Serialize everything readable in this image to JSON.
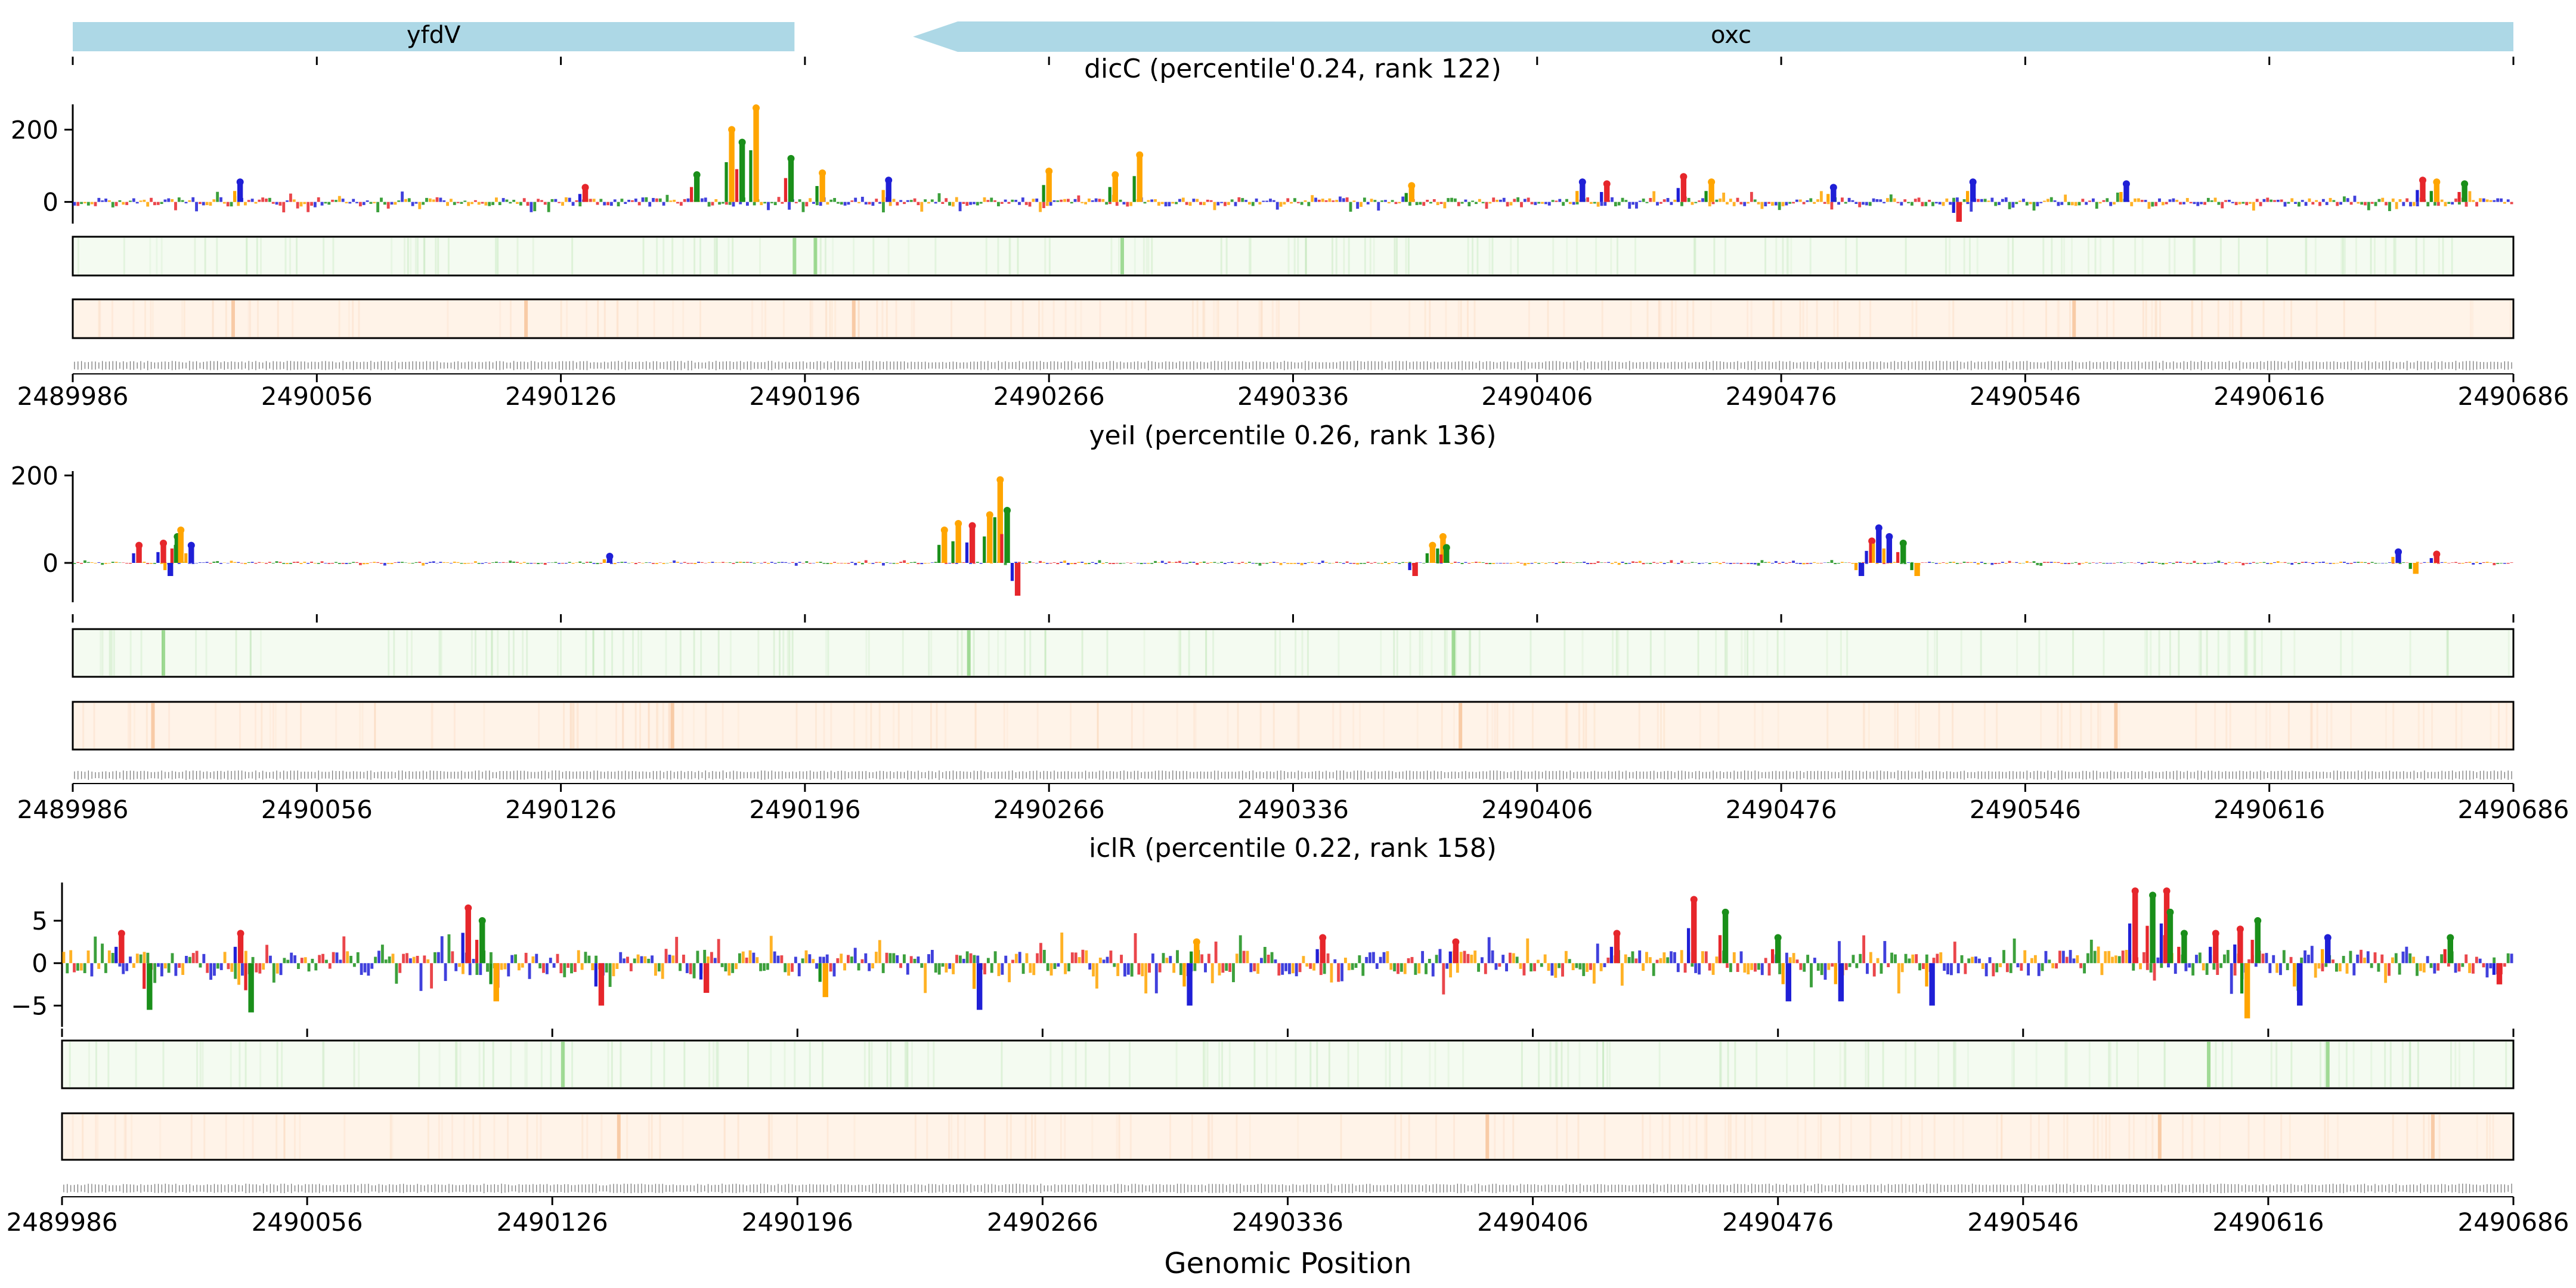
{
  "figure": {
    "xlabel": "Genomic Position"
  },
  "genes": [
    {
      "name": "yfdV",
      "start": 2489986,
      "end": 2490193,
      "strand": "+"
    },
    {
      "name": "oxc",
      "start": 2490227,
      "end": 2490686,
      "strand": "-"
    }
  ],
  "colors": {
    "gene": "#add8e6",
    "A": "#e6262b",
    "C": "#1f1fd6",
    "G": "#ffa500",
    "T": "#1a8f1a",
    "heat_green_bg": "#f4fbf1",
    "heat_green_mark": "#7ccc6e",
    "heat_orange_bg": "#fff3e8",
    "heat_orange_mark": "#f5b98a",
    "axis": "#000000"
  },
  "chart_data": [
    {
      "type": "line",
      "title": "dicC (percentile 0.24, rank 122)",
      "xlabel": "",
      "ylabel": "",
      "x_range": [
        2489986,
        2490686
      ],
      "x_ticks": [
        "2489986",
        "2490056",
        "2490126",
        "2490196",
        "2490266",
        "2490336",
        "2490406",
        "2490476",
        "2490546",
        "2490616",
        "2490686"
      ],
      "ylim": [
        -60,
        270
      ],
      "y_ticks": [
        0,
        200
      ],
      "series_note": "per-base attribution logo, bars colored by nucleotide",
      "peaks": [
        {
          "x": 2490034,
          "y": 55,
          "base": "C"
        },
        {
          "x": 2490133,
          "y": 40,
          "base": "A"
        },
        {
          "x": 2490165,
          "y": 75,
          "base": "T"
        },
        {
          "x": 2490175,
          "y": 200,
          "base": "G"
        },
        {
          "x": 2490178,
          "y": 165,
          "base": "T"
        },
        {
          "x": 2490182,
          "y": 260,
          "base": "G"
        },
        {
          "x": 2490192,
          "y": 120,
          "base": "T"
        },
        {
          "x": 2490201,
          "y": 80,
          "base": "G"
        },
        {
          "x": 2490220,
          "y": 60,
          "base": "C"
        },
        {
          "x": 2490266,
          "y": 85,
          "base": "G"
        },
        {
          "x": 2490285,
          "y": 75,
          "base": "G"
        },
        {
          "x": 2490292,
          "y": 130,
          "base": "G"
        },
        {
          "x": 2490370,
          "y": 45,
          "base": "G"
        },
        {
          "x": 2490419,
          "y": 55,
          "base": "C"
        },
        {
          "x": 2490426,
          "y": 50,
          "base": "A"
        },
        {
          "x": 2490448,
          "y": 70,
          "base": "A"
        },
        {
          "x": 2490456,
          "y": 55,
          "base": "G"
        },
        {
          "x": 2490491,
          "y": 40,
          "base": "C"
        },
        {
          "x": 2490527,
          "y": -55,
          "base": "A"
        },
        {
          "x": 2490531,
          "y": 55,
          "base": "C"
        },
        {
          "x": 2490575,
          "y": 50,
          "base": "C"
        },
        {
          "x": 2490660,
          "y": 60,
          "base": "A"
        },
        {
          "x": 2490664,
          "y": 55,
          "base": "G"
        },
        {
          "x": 2490672,
          "y": 50,
          "base": "T"
        }
      ],
      "noise_amplitude": 18,
      "heat_green_marks": [
        2490193,
        2490199,
        2490287
      ],
      "heat_orange_marks": [
        2490032,
        2490116,
        2490210,
        2490560
      ]
    },
    {
      "type": "line",
      "title": "yeiI (percentile 0.26, rank 136)",
      "xlabel": "",
      "ylabel": "",
      "x_range": [
        2489986,
        2490686
      ],
      "x_ticks": [
        "2489986",
        "2490056",
        "2490126",
        "2490196",
        "2490266",
        "2490336",
        "2490406",
        "2490476",
        "2490546",
        "2490616",
        "2490686"
      ],
      "ylim": [
        -90,
        210
      ],
      "y_ticks": [
        0,
        200
      ],
      "series_note": "per-base attribution logo, bars colored by nucleotide",
      "peaks": [
        {
          "x": 2490005,
          "y": 40,
          "base": "A"
        },
        {
          "x": 2490012,
          "y": 45,
          "base": "A"
        },
        {
          "x": 2490014,
          "y": -30,
          "base": "C"
        },
        {
          "x": 2490016,
          "y": 60,
          "base": "T"
        },
        {
          "x": 2490017,
          "y": 75,
          "base": "G"
        },
        {
          "x": 2490020,
          "y": 40,
          "base": "C"
        },
        {
          "x": 2490140,
          "y": 15,
          "base": "C"
        },
        {
          "x": 2490236,
          "y": 75,
          "base": "G"
        },
        {
          "x": 2490240,
          "y": 90,
          "base": "G"
        },
        {
          "x": 2490244,
          "y": 85,
          "base": "A"
        },
        {
          "x": 2490249,
          "y": 110,
          "base": "G"
        },
        {
          "x": 2490252,
          "y": 190,
          "base": "G"
        },
        {
          "x": 2490254,
          "y": 120,
          "base": "T"
        },
        {
          "x": 2490257,
          "y": -75,
          "base": "A"
        },
        {
          "x": 2490371,
          "y": -30,
          "base": "A"
        },
        {
          "x": 2490376,
          "y": 40,
          "base": "G"
        },
        {
          "x": 2490379,
          "y": 60,
          "base": "G"
        },
        {
          "x": 2490380,
          "y": 35,
          "base": "T"
        },
        {
          "x": 2490499,
          "y": -30,
          "base": "C"
        },
        {
          "x": 2490502,
          "y": 50,
          "base": "A"
        },
        {
          "x": 2490504,
          "y": 80,
          "base": "C"
        },
        {
          "x": 2490507,
          "y": 60,
          "base": "C"
        },
        {
          "x": 2490511,
          "y": 45,
          "base": "T"
        },
        {
          "x": 2490515,
          "y": -30,
          "base": "G"
        },
        {
          "x": 2490653,
          "y": 25,
          "base": "C"
        },
        {
          "x": 2490658,
          "y": -25,
          "base": "G"
        },
        {
          "x": 2490664,
          "y": 20,
          "base": "A"
        }
      ],
      "noise_amplitude": 4,
      "heat_green_marks": [
        2490012,
        2490243,
        2490382
      ],
      "heat_orange_marks": [
        2490009,
        2490158,
        2490384,
        2490572
      ]
    },
    {
      "type": "line",
      "title": "iclR (percentile 0.22, rank 158)",
      "xlabel": "",
      "ylabel": "",
      "x_range": [
        2489986,
        2490686
      ],
      "x_ticks": [
        "2489986",
        "2490056",
        "2490126",
        "2490196",
        "2490266",
        "2490336",
        "2490406",
        "2490476",
        "2490546",
        "2490616",
        "2490686"
      ],
      "ylim": [
        -7.5,
        9.5
      ],
      "y_ticks": [
        5,
        0,
        -5
      ],
      "series_note": "per-base attribution logo, bars colored by nucleotide",
      "peaks": [
        {
          "x": 2490003,
          "y": 3.5,
          "base": "A"
        },
        {
          "x": 2490011,
          "y": -5.5,
          "base": "T"
        },
        {
          "x": 2490037,
          "y": 3.5,
          "base": "A"
        },
        {
          "x": 2490040,
          "y": -5.8,
          "base": "T"
        },
        {
          "x": 2490102,
          "y": 6.5,
          "base": "A"
        },
        {
          "x": 2490106,
          "y": 5.0,
          "base": "T"
        },
        {
          "x": 2490110,
          "y": -4.5,
          "base": "G"
        },
        {
          "x": 2490140,
          "y": -5.0,
          "base": "A"
        },
        {
          "x": 2490170,
          "y": -3.5,
          "base": "A"
        },
        {
          "x": 2490204,
          "y": -4.0,
          "base": "G"
        },
        {
          "x": 2490248,
          "y": -5.5,
          "base": "C"
        },
        {
          "x": 2490308,
          "y": -5.0,
          "base": "C"
        },
        {
          "x": 2490310,
          "y": 2.5,
          "base": "G"
        },
        {
          "x": 2490346,
          "y": 3.0,
          "base": "A"
        },
        {
          "x": 2490384,
          "y": 2.5,
          "base": "A"
        },
        {
          "x": 2490430,
          "y": 3.5,
          "base": "A"
        },
        {
          "x": 2490452,
          "y": 7.5,
          "base": "A"
        },
        {
          "x": 2490461,
          "y": 6.0,
          "base": "T"
        },
        {
          "x": 2490476,
          "y": 3.0,
          "base": "T"
        },
        {
          "x": 2490479,
          "y": -4.5,
          "base": "C"
        },
        {
          "x": 2490494,
          "y": -4.5,
          "base": "C"
        },
        {
          "x": 2490520,
          "y": -5.0,
          "base": "C"
        },
        {
          "x": 2490578,
          "y": 8.5,
          "base": "A"
        },
        {
          "x": 2490583,
          "y": 8.0,
          "base": "T"
        },
        {
          "x": 2490587,
          "y": 8.5,
          "base": "A"
        },
        {
          "x": 2490588,
          "y": 6.0,
          "base": "T"
        },
        {
          "x": 2490592,
          "y": 3.5,
          "base": "T"
        },
        {
          "x": 2490601,
          "y": 3.5,
          "base": "A"
        },
        {
          "x": 2490608,
          "y": 4.0,
          "base": "A"
        },
        {
          "x": 2490610,
          "y": -6.5,
          "base": "G"
        },
        {
          "x": 2490613,
          "y": 5.0,
          "base": "T"
        },
        {
          "x": 2490625,
          "y": -5.0,
          "base": "C"
        },
        {
          "x": 2490633,
          "y": 3.0,
          "base": "C"
        },
        {
          "x": 2490668,
          "y": 3.0,
          "base": "T"
        },
        {
          "x": 2490682,
          "y": -2.5,
          "base": "A"
        }
      ],
      "noise_amplitude": 2.2,
      "heat_green_marks": [
        2490129,
        2490599,
        2490633
      ],
      "heat_orange_marks": [
        2490145,
        2490393,
        2490585,
        2490663
      ]
    }
  ]
}
